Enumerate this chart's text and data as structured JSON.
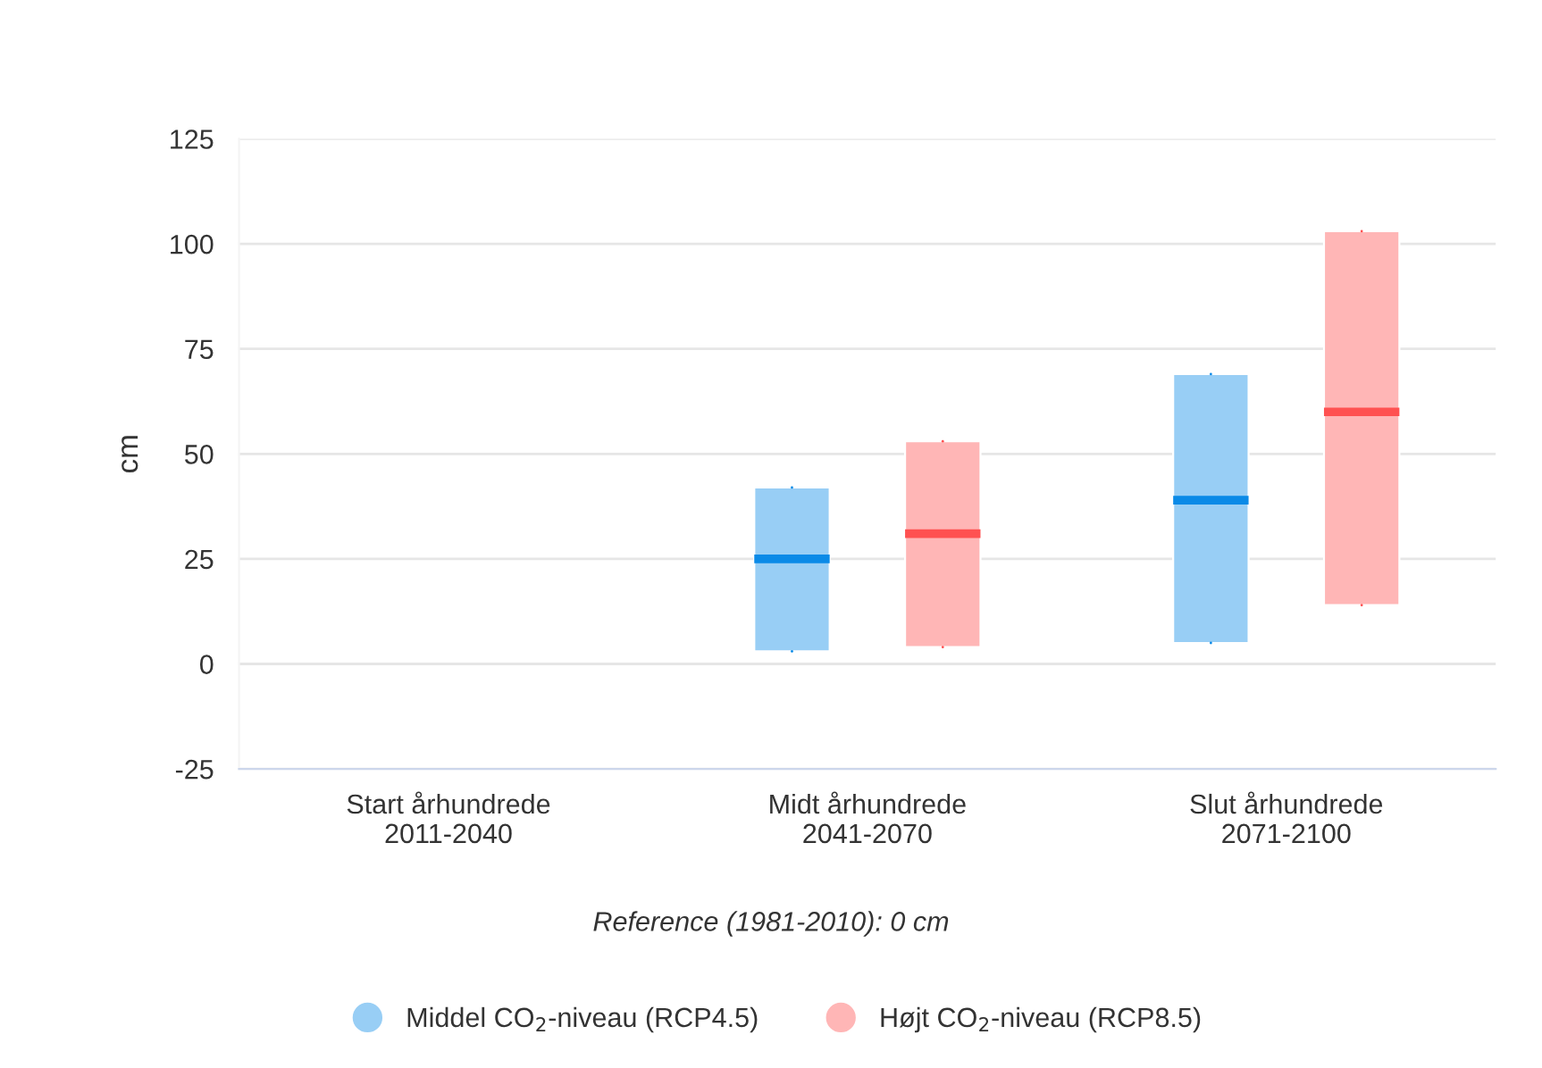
{
  "chart_data": {
    "type": "box",
    "ylabel": "cm",
    "categories": [
      "Start århundrede\n2011-2040",
      "Midt århundrede\n2041-2070",
      "Slut århundrede\n2071-2100"
    ],
    "series": [
      {
        "name": "Middel CO$_{2}$-niveau (RCP4.5)",
        "color": "#98cef5",
        "boxes": [
          null,
          {
            "low": 3,
            "q1": 3,
            "median": 25,
            "q3": 42,
            "high": 42
          },
          {
            "low": 5,
            "q1": 5,
            "median": 39,
            "q3": 69,
            "high": 69
          }
        ]
      },
      {
        "name": "Højt CO$_{2}$-niveau (RCP8.5)",
        "color": "#ffb6b6",
        "boxes": [
          null,
          {
            "low": 4,
            "q1": 4,
            "median": 31,
            "q3": 53,
            "high": 53
          },
          {
            "low": 14,
            "q1": 14,
            "median": 60,
            "q3": 103,
            "high": 103
          }
        ]
      }
    ],
    "ylim": [
      -25,
      125
    ],
    "yticks": [
      -25,
      0,
      25,
      50,
      75,
      100,
      125
    ],
    "grid": "y",
    "legend": "bottom",
    "annotations": [
      "Reference (1981-2010): 0 cm"
    ]
  }
}
